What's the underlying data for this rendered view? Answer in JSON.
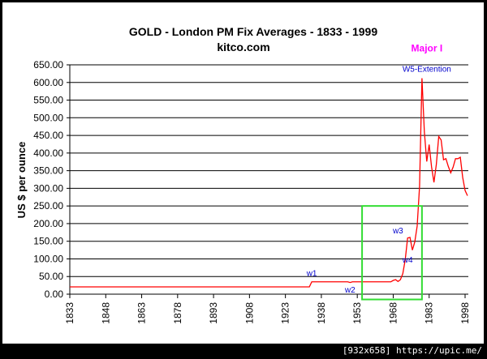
{
  "chart_data": {
    "type": "line",
    "title": "GOLD  -  London PM Fix Averages  -   1833 - 1999",
    "subtitle": "kitco.com",
    "xlabel": "",
    "ylabel": "US $ per ounce",
    "xlim": [
      1833,
      1999
    ],
    "ylim": [
      0,
      650
    ],
    "grid": true,
    "x_ticks": [
      "1833",
      "1848",
      "1863",
      "1878",
      "1893",
      "1908",
      "1923",
      "1938",
      "1953",
      "1968",
      "1983",
      "1998"
    ],
    "y_ticks": [
      "0.00",
      "50.00",
      "100.00",
      "150.00",
      "200.00",
      "250.00",
      "300.00",
      "350.00",
      "400.00",
      "450.00",
      "500.00",
      "550.00",
      "600.00",
      "650.00"
    ],
    "series_color": "#ff0000",
    "series": [
      {
        "x": [
          1833,
          1933,
          1934,
          1940,
          1949,
          1950,
          1951,
          1967,
          1968,
          1969,
          1970,
          1971,
          1972,
          1973,
          1974,
          1975,
          1976,
          1977,
          1978,
          1979,
          1980,
          1981,
          1982,
          1983,
          1984,
          1985,
          1986,
          1987,
          1988,
          1989,
          1990,
          1991,
          1992,
          1993,
          1994,
          1995,
          1996,
          1997,
          1998,
          1999
        ],
        "y": [
          20.67,
          20.67,
          35,
          35,
          35,
          33,
          35,
          35,
          39,
          41,
          36,
          41,
          58,
          97,
          159,
          161,
          125,
          148,
          193,
          306,
          612,
          460,
          376,
          424,
          361,
          317,
          368,
          447,
          437,
          381,
          384,
          362,
          344,
          360,
          384,
          384,
          388,
          331,
          294,
          279
        ]
      }
    ],
    "annotations": [
      {
        "text": "w1",
        "x": 1934,
        "y": 52,
        "color": "#0000cc"
      },
      {
        "text": "w2",
        "x": 1950,
        "y": 5,
        "color": "#0000cc"
      },
      {
        "text": "w3",
        "x": 1970,
        "y": 172,
        "color": "#0000cc"
      },
      {
        "text": "w4",
        "x": 1974,
        "y": 90,
        "color": "#0000cc"
      },
      {
        "text": "W5-Extention",
        "x": 1980,
        "y": 630,
        "color": "#0000cc"
      },
      {
        "text": "Major I",
        "x": 1980,
        "y": 688,
        "color": "#ff00ff"
      }
    ],
    "highlight_box": {
      "x": [
        1955,
        1980
      ],
      "y": [
        -15,
        250
      ],
      "color": "#33dd33"
    }
  },
  "watermark": "[932x658] https://upic.me/"
}
